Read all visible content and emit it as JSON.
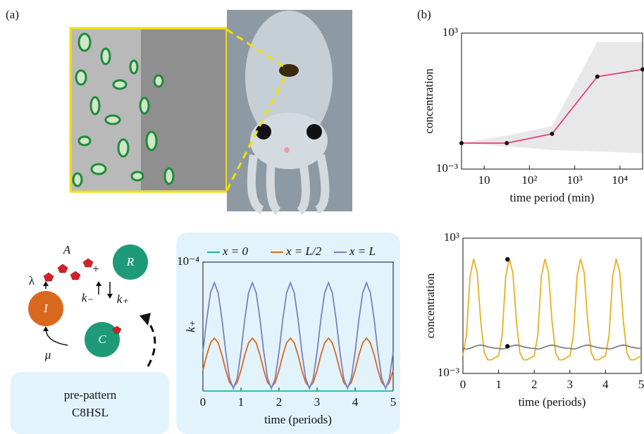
{
  "panel_labels": [
    "(a)",
    "(b)"
  ],
  "diagram": {
    "nodes": [
      {
        "label": "I"
      },
      {
        "label": "C"
      },
      {
        "label": "R"
      }
    ],
    "labels": {
      "signal": "A",
      "production": "λ",
      "binding": "+",
      "unbinding": "k₋",
      "rate": "k₊",
      "decay": "μ"
    },
    "box": [
      "pre-pattern",
      "C8HSL"
    ]
  },
  "chart_data": [
    {
      "type": "line",
      "xlabel": "time period (min)",
      "ylabel": "concentration",
      "xlog": true,
      "ylog": true,
      "xlim": [
        3.16,
        31623
      ],
      "ylim": [
        0.001,
        1000
      ],
      "xticks": [
        10,
        {
          "value": 100,
          "label": "10²"
        },
        {
          "value": 1000,
          "label": "10³"
        },
        {
          "value": 10000,
          "label": "10⁴"
        }
      ],
      "yticks": [
        {
          "value": 1000,
          "label": "10³"
        },
        {
          "value": 0.001,
          "label": "10⁻³"
        }
      ],
      "x": [
        3.16,
        31.6,
        316,
        3162,
        31623
      ],
      "band": {
        "color": "#e8e8e8",
        "upper": [
          0.014,
          0.03,
          0.08,
          400,
          400
        ],
        "lower": [
          0.014,
          0.01,
          0.007,
          0.006,
          0.005
        ]
      },
      "series": [
        {
          "color": "#e0407e",
          "values": [
            0.014,
            0.014,
            0.036,
            12,
            25
          ]
        }
      ],
      "markers": true,
      "marker_color": "#111111"
    },
    {
      "type": "line",
      "xlabel": "time (periods)",
      "ylabel": "k₊",
      "xlim": [
        0,
        5
      ],
      "ylim": [
        0,
        0.0001
      ],
      "xticks": [
        0,
        1,
        2,
        3,
        4,
        5
      ],
      "yticks": [
        {
          "value": 0.0001,
          "label": "10⁻⁴"
        }
      ],
      "legend": "top",
      "x": [
        0,
        0.1,
        0.2,
        0.3,
        0.4,
        0.5,
        0.6,
        0.7,
        0.8,
        0.9,
        1,
        1.1,
        1.2,
        1.3,
        1.4,
        1.5,
        1.6,
        1.7,
        1.8,
        1.9,
        2,
        2.1,
        2.2,
        2.3,
        2.4,
        2.5,
        2.6,
        2.7,
        2.8,
        2.9,
        3,
        3.1,
        3.2,
        3.3,
        3.4,
        3.5,
        3.6,
        3.7,
        3.8,
        3.9,
        4,
        4.1,
        4.2,
        4.3,
        4.4,
        4.5,
        4.6,
        4.7,
        4.8,
        4.9,
        5
      ],
      "series": [
        {
          "name": "x = 0",
          "color": "#1bb3a3",
          "values": [
            0,
            0,
            0,
            0,
            0,
            0,
            0,
            0,
            0,
            0,
            0,
            0,
            0,
            0,
            0,
            0,
            0,
            0,
            0,
            0,
            0,
            0,
            0,
            0,
            0,
            0,
            0,
            0,
            0,
            0,
            0,
            0,
            0,
            0,
            0,
            0,
            0,
            0,
            0,
            0,
            0,
            0,
            0,
            0,
            0,
            0,
            0,
            0,
            0,
            0,
            0
          ]
        },
        {
          "name": "x = L/2",
          "color": "#d9691f",
          "values": [
            1.61e-05,
            2.79e-05,
            3.74e-05,
            4.1e-05,
            3.74e-05,
            2.79e-05,
            1.61e-05,
            6.6e-06,
            3e-06,
            6.6e-06,
            1.61e-05,
            2.79e-05,
            3.74e-05,
            4.1e-05,
            3.74e-05,
            2.79e-05,
            1.61e-05,
            6.6e-06,
            3e-06,
            6.6e-06,
            1.61e-05,
            2.79e-05,
            3.74e-05,
            4.1e-05,
            3.74e-05,
            2.79e-05,
            1.61e-05,
            6.6e-06,
            3e-06,
            6.6e-06,
            1.61e-05,
            2.79e-05,
            3.74e-05,
            4.1e-05,
            3.74e-05,
            2.79e-05,
            1.61e-05,
            6.6e-06,
            3e-06,
            6.6e-06,
            1.61e-05,
            2.79e-05,
            3.74e-05,
            4.1e-05,
            3.74e-05,
            2.79e-05,
            1.61e-05,
            6.6e-06,
            3e-06,
            6.6e-06,
            1.61e-05
          ]
        },
        {
          "name": "x = L",
          "color": "#7b7fc4",
          "values": [
            3.03e-05,
            5.57e-05,
            7.62e-05,
            8.4e-05,
            7.62e-05,
            5.57e-05,
            3.03e-05,
            9.8e-06,
            2e-06,
            9.8e-06,
            3.03e-05,
            5.57e-05,
            7.62e-05,
            8.4e-05,
            7.62e-05,
            5.57e-05,
            3.03e-05,
            9.8e-06,
            2e-06,
            9.8e-06,
            3.03e-05,
            5.57e-05,
            7.62e-05,
            8.4e-05,
            7.62e-05,
            5.57e-05,
            3.03e-05,
            9.8e-06,
            2e-06,
            9.8e-06,
            3.03e-05,
            5.57e-05,
            7.62e-05,
            8.4e-05,
            7.62e-05,
            5.57e-05,
            3.03e-05,
            9.8e-06,
            2e-06,
            9.8e-06,
            3.03e-05,
            5.57e-05,
            7.62e-05,
            8.4e-05,
            7.62e-05,
            5.57e-05,
            3.03e-05,
            9.8e-06,
            2e-06,
            9.8e-06,
            3.03e-05
          ]
        }
      ]
    },
    {
      "type": "line",
      "xlabel": "time (periods)",
      "ylabel": "concentration",
      "ylog": true,
      "xlim": [
        0,
        5
      ],
      "ylim": [
        0.001,
        1000
      ],
      "xticks": [
        0,
        1,
        2,
        3,
        4,
        5
      ],
      "yticks": [
        {
          "value": 1000,
          "label": "10³"
        },
        {
          "value": 0.001,
          "label": "10⁻³"
        }
      ],
      "x": [
        0,
        0.1,
        0.2,
        0.3,
        0.4,
        0.5,
        0.6,
        0.7,
        0.8,
        0.9,
        1,
        1.1,
        1.2,
        1.3,
        1.4,
        1.5,
        1.6,
        1.7,
        1.8,
        1.9,
        2,
        2.1,
        2.2,
        2.3,
        2.4,
        2.5,
        2.6,
        2.7,
        2.8,
        2.9,
        3,
        3.1,
        3.2,
        3.3,
        3.4,
        3.5,
        3.6,
        3.7,
        3.8,
        3.9,
        4,
        4.1,
        4.2,
        4.3,
        4.4,
        4.5,
        4.6,
        4.7,
        4.8,
        4.9,
        5
      ],
      "series": [
        {
          "color": "#e8b020",
          "values": [
            0.006,
            0.05,
            20,
            120,
            30,
            0.2,
            0.008,
            0.004,
            0.004,
            0.005,
            0.006,
            0.05,
            20,
            120,
            30,
            0.2,
            0.008,
            0.004,
            0.004,
            0.005,
            0.006,
            0.05,
            20,
            120,
            30,
            0.2,
            0.008,
            0.004,
            0.004,
            0.005,
            0.006,
            0.05,
            20,
            120,
            30,
            0.2,
            0.008,
            0.004,
            0.004,
            0.005,
            0.006,
            0.05,
            20,
            120,
            30,
            0.2,
            0.008,
            0.004,
            0.004,
            0.005,
            0.006
          ]
        },
        {
          "color": "#808080",
          "values": [
            0.013,
            0.012,
            0.013,
            0.015,
            0.017,
            0.018,
            0.017,
            0.015,
            0.014,
            0.013,
            0.013,
            0.012,
            0.013,
            0.015,
            0.017,
            0.018,
            0.017,
            0.015,
            0.014,
            0.013,
            0.013,
            0.012,
            0.013,
            0.015,
            0.017,
            0.018,
            0.017,
            0.015,
            0.014,
            0.013,
            0.013,
            0.012,
            0.013,
            0.015,
            0.017,
            0.018,
            0.017,
            0.015,
            0.014,
            0.013,
            0.013,
            0.012,
            0.013,
            0.015,
            0.017,
            0.018,
            0.017,
            0.015,
            0.014,
            0.013,
            0.013
          ]
        }
      ],
      "points": {
        "x": [
          1.25,
          1.25
        ],
        "values": [
          115,
          0.016
        ]
      },
      "marker_color": "#111111"
    }
  ]
}
